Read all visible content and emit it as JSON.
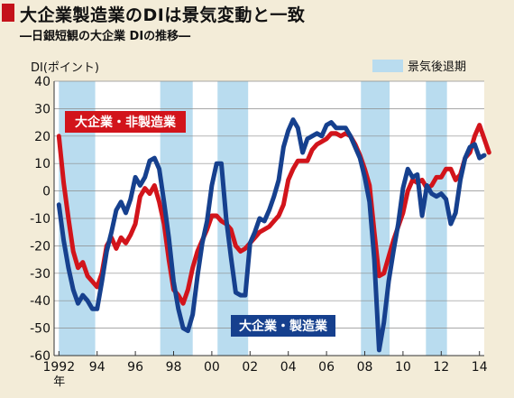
{
  "header": {
    "title": "大企業製造業のDIは景気変動と一致",
    "subtitle": "―日銀短観の大企業 DIの推移―"
  },
  "chart_data": {
    "type": "line",
    "ylabel": "DI(ポイント)",
    "ylim": [
      -60,
      40
    ],
    "yticks": [
      40,
      30,
      20,
      10,
      0,
      -10,
      -20,
      -30,
      -40,
      -50,
      -60
    ],
    "xlim": [
      1991.75,
      2014.25
    ],
    "xtick_labels": [
      {
        "x": 1992,
        "label": "1992"
      },
      {
        "x": 1994,
        "label": "94"
      },
      {
        "x": 1996,
        "label": "96"
      },
      {
        "x": 1998,
        "label": "98"
      },
      {
        "x": 2000,
        "label": "00"
      },
      {
        "x": 2002,
        "label": "02"
      },
      {
        "x": 2004,
        "label": "04"
      },
      {
        "x": 2006,
        "label": "06"
      },
      {
        "x": 2008,
        "label": "08"
      },
      {
        "x": 2010,
        "label": "10"
      },
      {
        "x": 2012,
        "label": "12"
      },
      {
        "x": 2014,
        "label": "14"
      }
    ],
    "xunit": "年",
    "recession_label": "景気後退期",
    "recession_color": "#b9dcef",
    "recessions": [
      [
        1992.0,
        1993.9
      ],
      [
        1997.3,
        1999.0
      ],
      [
        2000.3,
        2001.9
      ],
      [
        2007.8,
        2009.3
      ],
      [
        2011.2,
        2012.3
      ]
    ],
    "series": [
      {
        "name": "大企業・非製造業",
        "color": "#d2141b",
        "points": [
          [
            1992.0,
            20
          ],
          [
            1992.25,
            3
          ],
          [
            1992.5,
            -10
          ],
          [
            1992.75,
            -22
          ],
          [
            1993.0,
            -28
          ],
          [
            1993.25,
            -26
          ],
          [
            1993.5,
            -31
          ],
          [
            1993.75,
            -33
          ],
          [
            1994.0,
            -35
          ],
          [
            1994.25,
            -30
          ],
          [
            1994.5,
            -20
          ],
          [
            1994.75,
            -17
          ],
          [
            1995.0,
            -21
          ],
          [
            1995.25,
            -17
          ],
          [
            1995.5,
            -19
          ],
          [
            1995.75,
            -16
          ],
          [
            1996.0,
            -12
          ],
          [
            1996.25,
            -2
          ],
          [
            1996.5,
            1
          ],
          [
            1996.75,
            -1
          ],
          [
            1997.0,
            2
          ],
          [
            1997.25,
            -4
          ],
          [
            1997.5,
            -12
          ],
          [
            1997.75,
            -25
          ],
          [
            1998.0,
            -36
          ],
          [
            1998.25,
            -38
          ],
          [
            1998.5,
            -41
          ],
          [
            1998.75,
            -36
          ],
          [
            1999.0,
            -28
          ],
          [
            1999.25,
            -22
          ],
          [
            1999.5,
            -18
          ],
          [
            1999.75,
            -14
          ],
          [
            2000.0,
            -9
          ],
          [
            2000.25,
            -9
          ],
          [
            2000.5,
            -11
          ],
          [
            2000.75,
            -12
          ],
          [
            2001.0,
            -14
          ],
          [
            2001.25,
            -20
          ],
          [
            2001.5,
            -22
          ],
          [
            2001.75,
            -21
          ],
          [
            2002.0,
            -19
          ],
          [
            2002.25,
            -17
          ],
          [
            2002.5,
            -15
          ],
          [
            2002.75,
            -14
          ],
          [
            2003.0,
            -13
          ],
          [
            2003.25,
            -11
          ],
          [
            2003.5,
            -9
          ],
          [
            2003.75,
            -5
          ],
          [
            2004.0,
            4
          ],
          [
            2004.25,
            8
          ],
          [
            2004.5,
            11
          ],
          [
            2004.75,
            11
          ],
          [
            2005.0,
            11
          ],
          [
            2005.25,
            15
          ],
          [
            2005.5,
            17
          ],
          [
            2005.75,
            18
          ],
          [
            2006.0,
            19
          ],
          [
            2006.25,
            21
          ],
          [
            2006.5,
            21
          ],
          [
            2006.75,
            20
          ],
          [
            2007.0,
            21
          ],
          [
            2007.25,
            20
          ],
          [
            2007.5,
            17
          ],
          [
            2007.75,
            13
          ],
          [
            2008.0,
            8
          ],
          [
            2008.25,
            2
          ],
          [
            2008.5,
            -15
          ],
          [
            2008.75,
            -31
          ],
          [
            2009.0,
            -30
          ],
          [
            2009.25,
            -24
          ],
          [
            2009.5,
            -18
          ],
          [
            2009.75,
            -13
          ],
          [
            2010.0,
            -8
          ],
          [
            2010.25,
            0
          ],
          [
            2010.5,
            4
          ],
          [
            2010.75,
            3
          ],
          [
            2011.0,
            4
          ],
          [
            2011.25,
            1
          ],
          [
            2011.5,
            2
          ],
          [
            2011.75,
            5
          ],
          [
            2012.0,
            5
          ],
          [
            2012.25,
            8
          ],
          [
            2012.5,
            8
          ],
          [
            2012.75,
            4
          ],
          [
            2013.0,
            6
          ],
          [
            2013.25,
            12
          ],
          [
            2013.5,
            14
          ],
          [
            2013.75,
            20
          ],
          [
            2014.0,
            24
          ],
          [
            2014.25,
            19
          ],
          [
            2014.5,
            14
          ]
        ]
      },
      {
        "name": "大企業・製造業",
        "color": "#16408e",
        "points": [
          [
            1992.0,
            -5
          ],
          [
            1992.25,
            -18
          ],
          [
            1992.5,
            -28
          ],
          [
            1992.75,
            -36
          ],
          [
            1993.0,
            -41
          ],
          [
            1993.25,
            -38
          ],
          [
            1993.5,
            -40
          ],
          [
            1993.75,
            -43
          ],
          [
            1994.0,
            -43
          ],
          [
            1994.25,
            -33
          ],
          [
            1994.5,
            -22
          ],
          [
            1994.75,
            -15
          ],
          [
            1995.0,
            -7
          ],
          [
            1995.25,
            -4
          ],
          [
            1995.5,
            -8
          ],
          [
            1995.75,
            -3
          ],
          [
            1996.0,
            5
          ],
          [
            1996.25,
            2
          ],
          [
            1996.5,
            5
          ],
          [
            1996.75,
            11
          ],
          [
            1997.0,
            12
          ],
          [
            1997.25,
            8
          ],
          [
            1997.5,
            -4
          ],
          [
            1997.75,
            -17
          ],
          [
            1998.0,
            -33
          ],
          [
            1998.25,
            -43
          ],
          [
            1998.5,
            -50
          ],
          [
            1998.75,
            -51
          ],
          [
            1999.0,
            -45
          ],
          [
            1999.25,
            -31
          ],
          [
            1999.5,
            -19
          ],
          [
            1999.75,
            -11
          ],
          [
            2000.0,
            2
          ],
          [
            2000.25,
            10
          ],
          [
            2000.5,
            10
          ],
          [
            2000.75,
            -10
          ],
          [
            2001.0,
            -24
          ],
          [
            2001.25,
            -37
          ],
          [
            2001.5,
            -38
          ],
          [
            2001.75,
            -38
          ],
          [
            2002.0,
            -19
          ],
          [
            2002.25,
            -15
          ],
          [
            2002.5,
            -10
          ],
          [
            2002.75,
            -11
          ],
          [
            2003.0,
            -7
          ],
          [
            2003.25,
            -2
          ],
          [
            2003.5,
            4
          ],
          [
            2003.75,
            16
          ],
          [
            2004.0,
            22
          ],
          [
            2004.25,
            26
          ],
          [
            2004.5,
            23
          ],
          [
            2004.75,
            14
          ],
          [
            2005.0,
            19
          ],
          [
            2005.25,
            20
          ],
          [
            2005.5,
            21
          ],
          [
            2005.75,
            20
          ],
          [
            2006.0,
            24
          ],
          [
            2006.25,
            25
          ],
          [
            2006.5,
            23
          ],
          [
            2006.75,
            23
          ],
          [
            2007.0,
            23
          ],
          [
            2007.25,
            20
          ],
          [
            2007.5,
            16
          ],
          [
            2007.75,
            12
          ],
          [
            2008.0,
            5
          ],
          [
            2008.25,
            -4
          ],
          [
            2008.5,
            -25
          ],
          [
            2008.75,
            -58
          ],
          [
            2009.0,
            -48
          ],
          [
            2009.25,
            -33
          ],
          [
            2009.5,
            -22
          ],
          [
            2009.75,
            -12
          ],
          [
            2010.0,
            1
          ],
          [
            2010.25,
            8
          ],
          [
            2010.5,
            5
          ],
          [
            2010.75,
            6
          ],
          [
            2011.0,
            -9
          ],
          [
            2011.25,
            2
          ],
          [
            2011.5,
            -1
          ],
          [
            2011.75,
            -2
          ],
          [
            2012.0,
            -1
          ],
          [
            2012.25,
            -3
          ],
          [
            2012.5,
            -12
          ],
          [
            2012.75,
            -8
          ],
          [
            2013.0,
            4
          ],
          [
            2013.25,
            12
          ],
          [
            2013.5,
            16
          ],
          [
            2013.75,
            17
          ],
          [
            2014.0,
            12
          ],
          [
            2014.25,
            13
          ]
        ]
      }
    ]
  }
}
